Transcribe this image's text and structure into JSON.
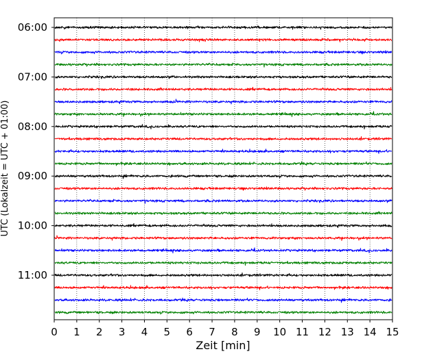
{
  "chart_data": {
    "type": "line",
    "title": "",
    "xlabel": "Zeit  [min]",
    "ylabel": "UTC (Lokalzeit = UTC + 01:00)",
    "xlim": [
      0,
      15
    ],
    "x_ticks": [
      "0",
      "1",
      "2",
      "3",
      "4",
      "5",
      "6",
      "7",
      "8",
      "9",
      "10",
      "11",
      "12",
      "13",
      "14",
      "15"
    ],
    "y_tick_labels": [
      "06:00",
      "07:00",
      "08:00",
      "09:00",
      "10:00",
      "11:00"
    ],
    "grid": "vertical dotted lines at each minute",
    "row_start": "06:00",
    "row_interval_minutes": 15,
    "series_color_cycle": [
      "#000000",
      "#ff0000",
      "#0000ff",
      "#008000"
    ],
    "series": [
      {
        "start": "06:00",
        "color": "#000000"
      },
      {
        "start": "06:15",
        "color": "#ff0000"
      },
      {
        "start": "06:30",
        "color": "#0000ff"
      },
      {
        "start": "06:45",
        "color": "#008000"
      },
      {
        "start": "07:00",
        "color": "#000000"
      },
      {
        "start": "07:15",
        "color": "#ff0000"
      },
      {
        "start": "07:30",
        "color": "#0000ff"
      },
      {
        "start": "07:45",
        "color": "#008000"
      },
      {
        "start": "08:00",
        "color": "#000000"
      },
      {
        "start": "08:15",
        "color": "#ff0000"
      },
      {
        "start": "08:30",
        "color": "#0000ff"
      },
      {
        "start": "08:45",
        "color": "#008000"
      },
      {
        "start": "09:00",
        "color": "#000000"
      },
      {
        "start": "09:15",
        "color": "#ff0000"
      },
      {
        "start": "09:30",
        "color": "#0000ff"
      },
      {
        "start": "09:45",
        "color": "#008000"
      },
      {
        "start": "10:00",
        "color": "#000000"
      },
      {
        "start": "10:15",
        "color": "#ff0000"
      },
      {
        "start": "10:30",
        "color": "#0000ff"
      },
      {
        "start": "10:45",
        "color": "#008000"
      },
      {
        "start": "11:00",
        "color": "#000000"
      },
      {
        "start": "11:15",
        "color": "#ff0000"
      },
      {
        "start": "11:30",
        "color": "#0000ff"
      },
      {
        "start": "11:45",
        "color": "#008000"
      }
    ]
  }
}
